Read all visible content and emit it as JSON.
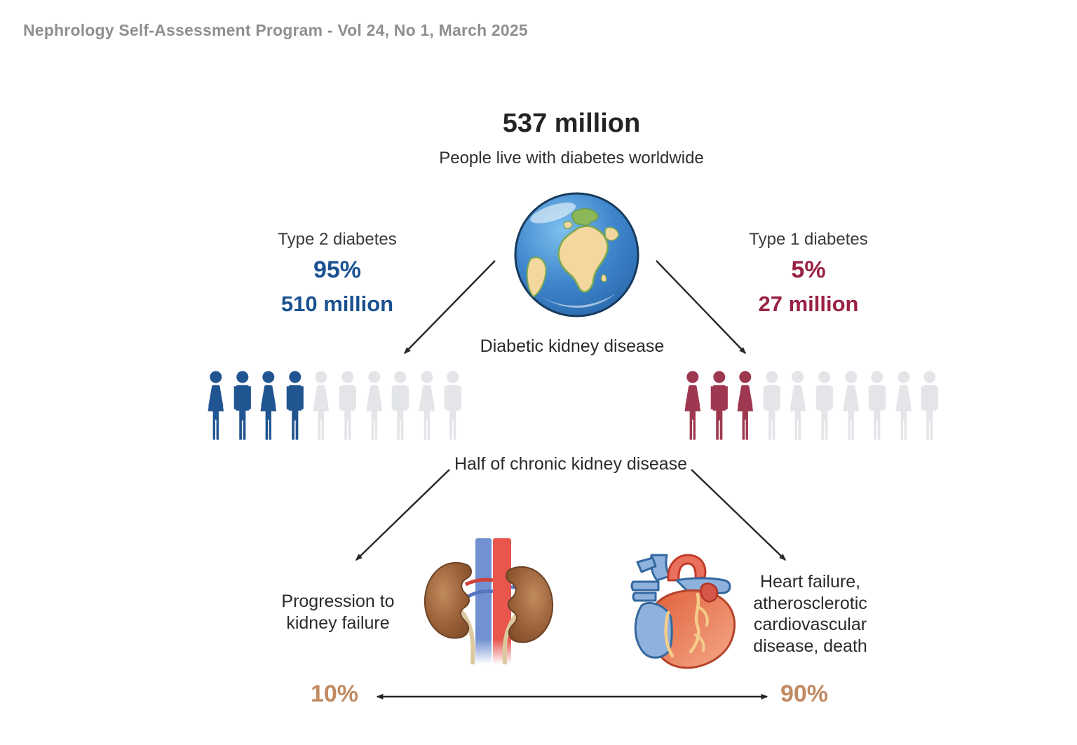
{
  "header": {
    "title": "Nephrology Self-Assessment Program - Vol 24, No 1, March 2025"
  },
  "stats": {
    "total": {
      "headline": "537 million",
      "subheadline": "People live with diabetes worldwide"
    },
    "type2": {
      "label": "Type 2 diabetes",
      "percent": "95%",
      "count": "510 million",
      "color": "#1a5291"
    },
    "type1": {
      "label": "Type 1 diabetes",
      "percent": "5%",
      "count": "27 million",
      "color": "#992144"
    }
  },
  "flow": {
    "dkd_label": "Diabetic kidney disease",
    "half_ckd_label": "Half of chronic kidney disease",
    "kidney_outcome_lines": [
      "Progression to",
      "kidney failure"
    ],
    "heart_outcome_lines": [
      "Heart failure,",
      "atherosclerotic",
      "cardiovascular",
      "disease, death"
    ],
    "kidney_outcome_percent": "10%",
    "heart_outcome_percent": "90%",
    "percent_color": "#c28a62"
  },
  "people_rows": [
    {
      "side": "type2-diabetes",
      "total": 10,
      "highlighted": 4,
      "highlight_color": "#215591",
      "muted_color": "#e3e5e8"
    },
    {
      "side": "type1-diabetes",
      "total": 10,
      "highlighted": 3,
      "highlight_color": "#9e3850",
      "muted_color": "#e3e5e8"
    }
  ],
  "illustrations": {
    "globe": "earth-globe-illustration",
    "kidneys": "kidneys-with-vessels-illustration",
    "heart": "heart-anatomy-illustration"
  }
}
